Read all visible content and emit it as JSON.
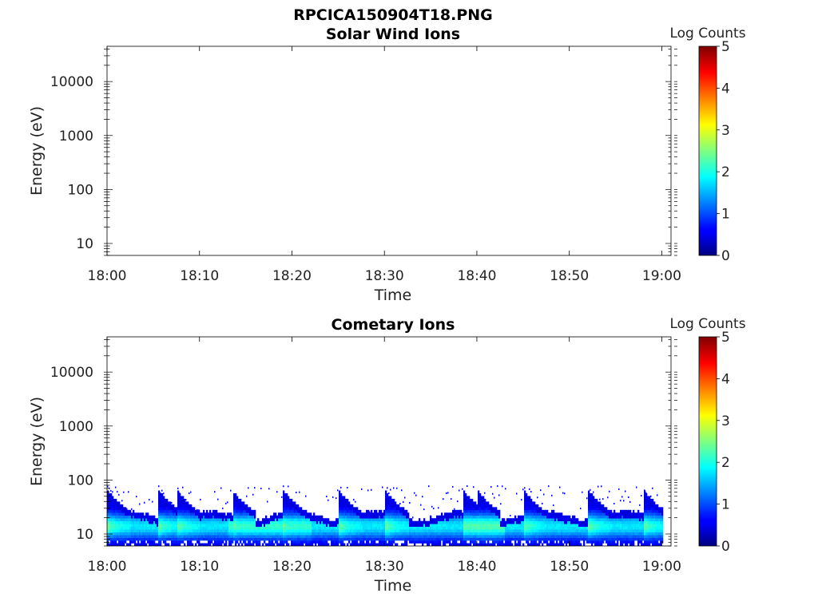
{
  "figure_title": "RPCICA150904T18.PNG",
  "colorbar": {
    "label": "Log Counts",
    "ticks": [
      "0",
      "1",
      "2",
      "3",
      "4",
      "5"
    ],
    "range": [
      0,
      5
    ],
    "colormap": "jet"
  },
  "chart_data": [
    {
      "type": "heatmap",
      "title": "Solar Wind Ions",
      "xlabel": "Time",
      "ylabel": "Energy (eV)",
      "x_ticks": [
        "18:00",
        "18:10",
        "18:20",
        "18:30",
        "18:40",
        "18:50",
        "19:00"
      ],
      "x_range_minutes": [
        0,
        61
      ],
      "y_ticks": [
        "10",
        "100",
        "1000",
        "10000"
      ],
      "y_scale": "log",
      "y_range": [
        6,
        45000
      ],
      "data": "empty"
    },
    {
      "type": "heatmap",
      "title": "Cometary Ions",
      "xlabel": "Time",
      "ylabel": "Energy (eV)",
      "x_ticks": [
        "18:00",
        "18:10",
        "18:20",
        "18:30",
        "18:40",
        "18:50",
        "19:00"
      ],
      "x_range_minutes": [
        0,
        61
      ],
      "y_ticks": [
        "10",
        "100",
        "1000",
        "10000"
      ],
      "y_scale": "log",
      "y_range": [
        6,
        45000
      ],
      "band": {
        "description": "low-energy ion band",
        "energy_range_eV": [
          6,
          40
        ],
        "max_log_counts": 2.5,
        "scatter_upper_eV": 80,
        "bursts_minutes": [
          0,
          5.5,
          7.5,
          13.5,
          19,
          25,
          30,
          38.5,
          40,
          45,
          52,
          58
        ]
      }
    }
  ]
}
